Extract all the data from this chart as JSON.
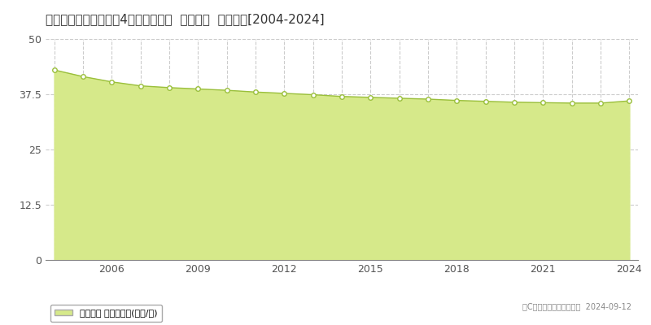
{
  "title": "愛知県知多市にしの台4丁目７番３外  地価公示  地価推移[2004-2024]",
  "years": [
    2004,
    2005,
    2006,
    2007,
    2008,
    2009,
    2010,
    2011,
    2012,
    2013,
    2014,
    2015,
    2016,
    2017,
    2018,
    2019,
    2020,
    2021,
    2022,
    2023,
    2024
  ],
  "values": [
    43.0,
    41.5,
    40.3,
    39.4,
    39.0,
    38.7,
    38.4,
    38.0,
    37.7,
    37.4,
    37.0,
    36.8,
    36.6,
    36.4,
    36.1,
    35.9,
    35.7,
    35.6,
    35.5,
    35.5,
    36.0
  ],
  "line_color": "#9abf3b",
  "fill_color": "#d6e98a",
  "fill_alpha": 1.0,
  "marker_face": "#ffffff",
  "marker_edge": "#9abf3b",
  "marker_size": 4,
  "ylim": [
    0,
    50
  ],
  "yticks": [
    0,
    12.5,
    25,
    37.5,
    50
  ],
  "ytick_labels": [
    "0",
    "12.5",
    "25",
    "37.5",
    "50"
  ],
  "xticks": [
    2006,
    2009,
    2012,
    2015,
    2018,
    2021,
    2024
  ],
  "grid_color": "#cccccc",
  "bg_color": "#ffffff",
  "plot_bg_color": "#f5f5f5",
  "legend_label": "地価公示 平均嵪単価(万円/嵪)",
  "copyright_text": "（C）土地価格ドットコム  2024-09-12",
  "title_fontsize": 11,
  "tick_fontsize": 9,
  "legend_fontsize": 8,
  "copyright_fontsize": 7
}
